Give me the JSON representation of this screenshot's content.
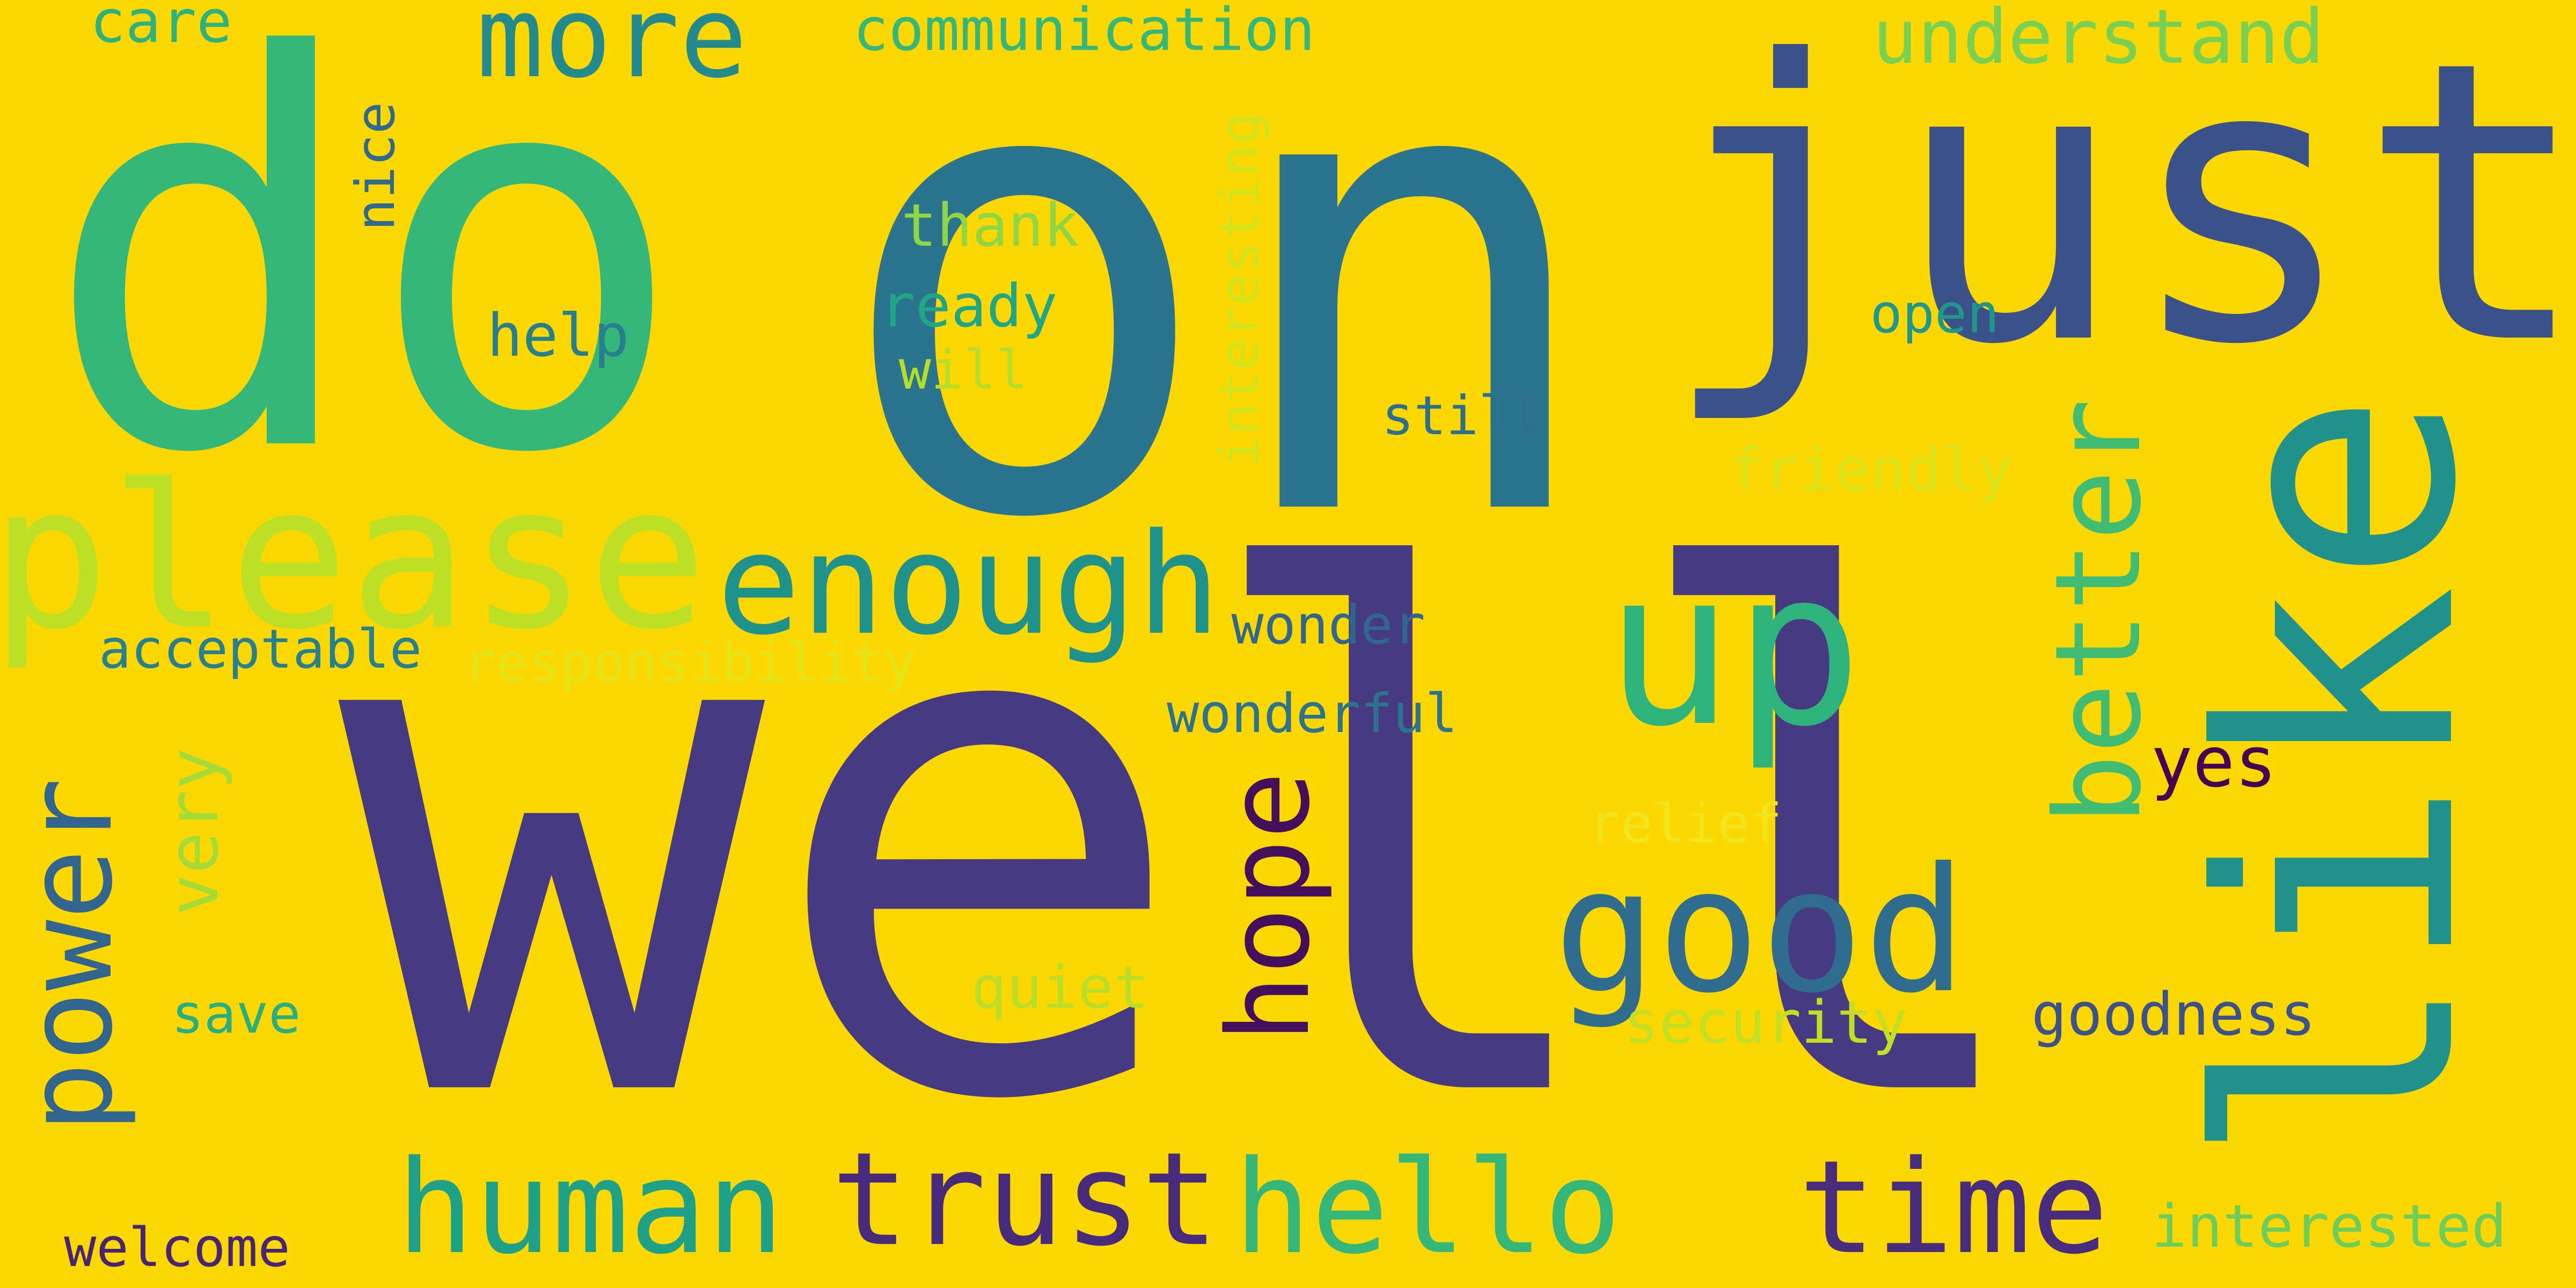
{
  "words": [
    {
      "text": "well",
      "color": "#463A82"
    },
    {
      "text": "on",
      "color": "#2B748E"
    },
    {
      "text": "do",
      "color": "#34B779"
    },
    {
      "text": "just",
      "color": "#3B518A"
    },
    {
      "text": "like",
      "color": "#21918C"
    },
    {
      "text": "please",
      "color": "#BDDF26"
    },
    {
      "text": "up",
      "color": "#2EB37C"
    },
    {
      "text": "enough",
      "color": "#20928C"
    },
    {
      "text": "good",
      "color": "#2F6C8E"
    },
    {
      "text": "better",
      "color": "#40BD72"
    },
    {
      "text": "power",
      "color": "#32658E"
    },
    {
      "text": "hope",
      "color": "#440F5D"
    },
    {
      "text": "human",
      "color": "#1FA187"
    },
    {
      "text": "trust",
      "color": "#472A7A"
    },
    {
      "text": "hello",
      "color": "#35B779"
    },
    {
      "text": "time",
      "color": "#472D7B"
    },
    {
      "text": "more",
      "color": "#238A8D"
    },
    {
      "text": "understand",
      "color": "#7AD151"
    },
    {
      "text": "communication",
      "color": "#35B779"
    },
    {
      "text": "care",
      "color": "#2DB27D"
    },
    {
      "text": "nice",
      "color": "#30698E"
    },
    {
      "text": "interesting",
      "color": "#D2E21B"
    },
    {
      "text": "thank",
      "color": "#8ED645"
    },
    {
      "text": "ready",
      "color": "#21A685"
    },
    {
      "text": "will",
      "color": "#B5DE2B"
    },
    {
      "text": "help",
      "color": "#277F8E"
    },
    {
      "text": "open",
      "color": "#1F988B"
    },
    {
      "text": "still",
      "color": "#2D708E"
    },
    {
      "text": "friendly",
      "color": "#DAE319"
    },
    {
      "text": "acceptable",
      "color": "#27808E"
    },
    {
      "text": "responsibility",
      "color": "#E5E419"
    },
    {
      "text": "wonder",
      "color": "#31668E"
    },
    {
      "text": "wonderful",
      "color": "#2C738E"
    },
    {
      "text": "very",
      "color": "#A5DB36"
    },
    {
      "text": "yes",
      "color": "#440154"
    },
    {
      "text": "relief",
      "color": "#F1E51D"
    },
    {
      "text": "save",
      "color": "#29AF7F"
    },
    {
      "text": "quiet",
      "color": "#BADE27"
    },
    {
      "text": "security",
      "color": "#C2DF23"
    },
    {
      "text": "goodness",
      "color": "#3B528B"
    },
    {
      "text": "welcome",
      "color": "#482475"
    },
    {
      "text": "interested",
      "color": "#6CCD5A"
    }
  ]
}
